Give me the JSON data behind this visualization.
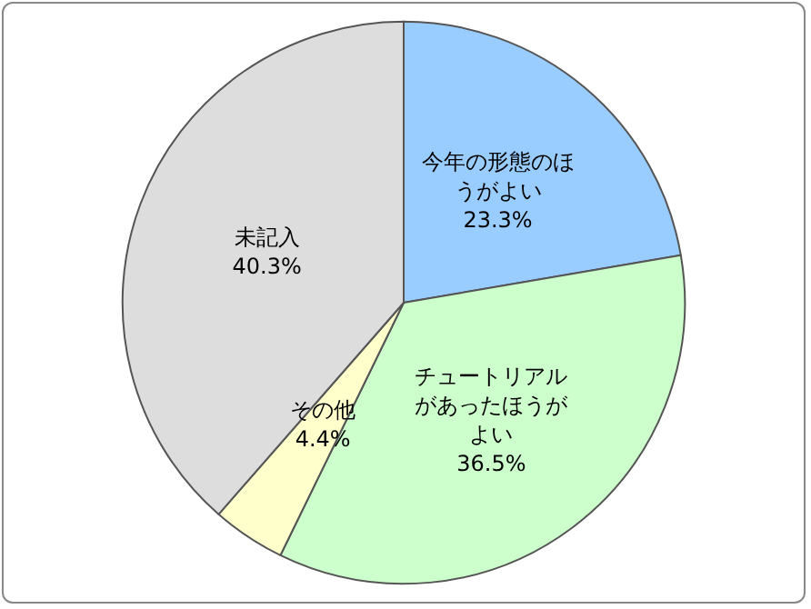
{
  "chart_data": {
    "type": "pie",
    "categories": [
      "今年の形態のほうがよい",
      "チュートリアルがあったほうがよい",
      "その他",
      "未記入"
    ],
    "values": [
      23.3,
      36.5,
      4.4,
      40.3
    ],
    "value_labels": [
      "23.3%",
      "36.5%",
      "4.4%",
      "40.3%"
    ],
    "colors": [
      "#99ccff",
      "#ccffcc",
      "#ffffcc",
      "#dddddd"
    ],
    "legend": false
  }
}
